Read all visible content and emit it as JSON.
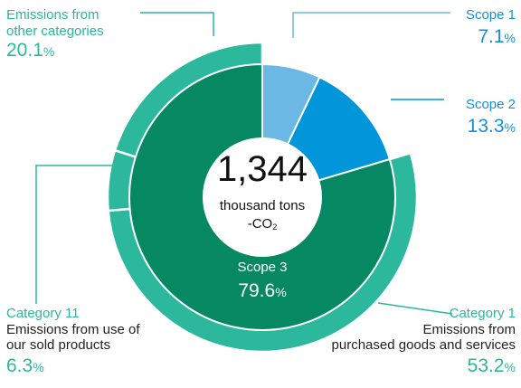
{
  "chart_data": {
    "type": "pie",
    "center": {
      "value": "1,344",
      "unit_line1": "thousand tons",
      "unit_line2": "-CO",
      "unit_sub": "2"
    },
    "inner_ring": [
      {
        "name": "Scope 1",
        "value": 7.1,
        "color": "#6cb8e4"
      },
      {
        "name": "Scope 2",
        "value": 13.3,
        "color": "#0096d9"
      },
      {
        "name": "Scope 3",
        "value": 79.6,
        "color": "#068963"
      }
    ],
    "outer_ring": [
      {
        "name": "Category 1",
        "description": "Emissions from purchased goods and services",
        "value": 53.2,
        "color": "#2bb89c"
      },
      {
        "name": "Category 11",
        "description": "Emissions from use of our sold products",
        "value": 6.3,
        "color": "#2bb89c"
      },
      {
        "name": "Emissions from other categories",
        "value": 20.1,
        "color": "#2bb89c"
      }
    ]
  },
  "labels": {
    "scope1": {
      "title": "Scope 1",
      "value": "7.1",
      "unit": "%"
    },
    "scope2": {
      "title": "Scope 2",
      "value": "13.3",
      "unit": "%"
    },
    "scope3": {
      "title": "Scope 3",
      "value": "79.6",
      "unit": "%"
    },
    "other": {
      "line1": "Emissions from",
      "line2": "other categories",
      "value": "20.1",
      "unit": "%"
    },
    "cat11": {
      "title": "Category 11",
      "line1": "Emissions from use of",
      "line2": "our sold products",
      "value": "6.3",
      "unit": "%"
    },
    "cat1": {
      "title": "Category 1",
      "line1": "Emissions from",
      "line2": "purchased goods and services",
      "value": "53.2",
      "unit": "%"
    }
  }
}
